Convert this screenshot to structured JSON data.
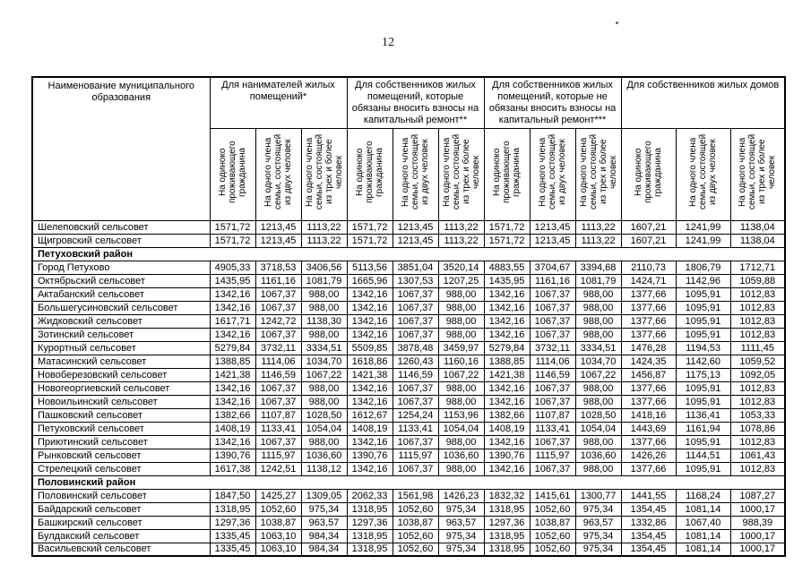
{
  "page": {
    "number": "12"
  },
  "table": {
    "name_header": "Наименование муниципального образования",
    "groups": [
      {
        "label": "Для нанимателей жилых помещений*"
      },
      {
        "label": "Для собственников жилых помещений, которые обязаны вносить взносы на капитальный ремонт**"
      },
      {
        "label": "Для собственников жилых помещений, которые не обязаны вносить взносы на капитальный ремонт***"
      },
      {
        "label": "Для собственников жилых домов"
      }
    ],
    "sub_headers": [
      "На одиноко проживающего гражданина",
      "На одного члена семьи, состоящей из двух человек",
      "На одного члена семьи, состоящей из трех и более человек"
    ],
    "rows": [
      {
        "type": "data",
        "name": "Шелеповский сельсовет",
        "values": [
          "1571,72",
          "1213,45",
          "1113,22",
          "1571,72",
          "1213,45",
          "1113,22",
          "1571,72",
          "1213,45",
          "1113,22",
          "1607,21",
          "1241,99",
          "1138,04"
        ]
      },
      {
        "type": "data",
        "name": "Щигровский сельсовет",
        "values": [
          "1571,72",
          "1213,45",
          "1113,22",
          "1571,72",
          "1213,45",
          "1113,22",
          "1571,72",
          "1213,45",
          "1113,22",
          "1607,21",
          "1241,99",
          "1138,04"
        ]
      },
      {
        "type": "section",
        "name": "Петуховский район"
      },
      {
        "type": "data",
        "name": "Город Петухово",
        "values": [
          "4905,33",
          "3718,53",
          "3406,56",
          "5113,56",
          "3851,04",
          "3520,14",
          "4883,55",
          "3704,67",
          "3394,68",
          "2110,73",
          "1806,79",
          "1712,71"
        ]
      },
      {
        "type": "data",
        "name": "Октябрьский сельсовет",
        "values": [
          "1435,95",
          "1161,16",
          "1081,79",
          "1665,96",
          "1307,53",
          "1207,25",
          "1435,95",
          "1161,16",
          "1081,79",
          "1424,71",
          "1142,96",
          "1059,88"
        ]
      },
      {
        "type": "data",
        "name": "Актабанский сельсовет",
        "values": [
          "1342,16",
          "1067,37",
          "988,00",
          "1342,16",
          "1067,37",
          "988,00",
          "1342,16",
          "1067,37",
          "988,00",
          "1377,66",
          "1095,91",
          "1012,83"
        ]
      },
      {
        "type": "data",
        "name": "Большегусиновский сельсовет",
        "values": [
          "1342,16",
          "1067,37",
          "988,00",
          "1342,16",
          "1067,37",
          "988,00",
          "1342,16",
          "1067,37",
          "988,00",
          "1377,66",
          "1095,91",
          "1012,83"
        ]
      },
      {
        "type": "data",
        "name": "Жидковский сельсовет",
        "values": [
          "1617,71",
          "1242,72",
          "1138,30",
          "1342,16",
          "1067,37",
          "988,00",
          "1342,16",
          "1067,37",
          "988,00",
          "1377,66",
          "1095,91",
          "1012,83"
        ]
      },
      {
        "type": "data",
        "name": "Зотинский сельсовет",
        "values": [
          "1342,16",
          "1067,37",
          "988,00",
          "1342,16",
          "1067,37",
          "988,00",
          "1342,16",
          "1067,37",
          "988,00",
          "1377,66",
          "1095,91",
          "1012,83"
        ]
      },
      {
        "type": "data",
        "name": "Курортный сельсовет",
        "values": [
          "5279,84",
          "3732,11",
          "3334,51",
          "5509,85",
          "3878,48",
          "3459,97",
          "5279,84",
          "3732,11",
          "3334,51",
          "1476,28",
          "1194,53",
          "1111,45"
        ]
      },
      {
        "type": "data",
        "name": "Матасинский сельсовет",
        "values": [
          "1388,85",
          "1114,06",
          "1034,70",
          "1618,86",
          "1260,43",
          "1160,16",
          "1388,85",
          "1114,06",
          "1034,70",
          "1424,35",
          "1142,60",
          "1059,52"
        ]
      },
      {
        "type": "data",
        "name": "Новоберезовский сельсовет",
        "values": [
          "1421,38",
          "1146,59",
          "1067,22",
          "1421,38",
          "1146,59",
          "1067,22",
          "1421,38",
          "1146,59",
          "1067,22",
          "1456,87",
          "1175,13",
          "1092,05"
        ]
      },
      {
        "type": "data",
        "name": "Новогеоргиевский сельсовет",
        "values": [
          "1342,16",
          "1067,37",
          "988,00",
          "1342,16",
          "1067,37",
          "988,00",
          "1342,16",
          "1067,37",
          "988,00",
          "1377,66",
          "1095,91",
          "1012,83"
        ]
      },
      {
        "type": "data",
        "name": "Новоильинский сельсовет",
        "values": [
          "1342,16",
          "1067,37",
          "988,00",
          "1342,16",
          "1067,37",
          "988,00",
          "1342,16",
          "1067,37",
          "988,00",
          "1377,66",
          "1095,91",
          "1012,83"
        ]
      },
      {
        "type": "data",
        "name": "Пашковский сельсовет",
        "values": [
          "1382,66",
          "1107,87",
          "1028,50",
          "1612,67",
          "1254,24",
          "1153,96",
          "1382,66",
          "1107,87",
          "1028,50",
          "1418,16",
          "1136,41",
          "1053,33"
        ]
      },
      {
        "type": "data",
        "name": "Петуховский сельсовет",
        "values": [
          "1408,19",
          "1133,41",
          "1054,04",
          "1408,19",
          "1133,41",
          "1054,04",
          "1408,19",
          "1133,41",
          "1054,04",
          "1443,69",
          "1161,94",
          "1078,86"
        ]
      },
      {
        "type": "data",
        "name": "Приютинский сельсовет",
        "values": [
          "1342,16",
          "1067,37",
          "988,00",
          "1342,16",
          "1067,37",
          "988,00",
          "1342,16",
          "1067,37",
          "988,00",
          "1377,66",
          "1095,91",
          "1012,83"
        ]
      },
      {
        "type": "data",
        "name": "Рынковский сельсовет",
        "values": [
          "1390,76",
          "1115,97",
          "1036,60",
          "1390,76",
          "1115,97",
          "1036,60",
          "1390,76",
          "1115,97",
          "1036,60",
          "1426,26",
          "1144,51",
          "1061,43"
        ]
      },
      {
        "type": "data",
        "name": "Стрелецкий сельсовет",
        "values": [
          "1617,38",
          "1242,51",
          "1138,12",
          "1342,16",
          "1067,37",
          "988,00",
          "1342,16",
          "1067,37",
          "988,00",
          "1377,66",
          "1095,91",
          "1012,83"
        ]
      },
      {
        "type": "section",
        "name": "Половинский район"
      },
      {
        "type": "data",
        "name": "Половинский сельсовет",
        "values": [
          "1847,50",
          "1425,27",
          "1309,05",
          "2062,33",
          "1561,98",
          "1426,23",
          "1832,32",
          "1415,61",
          "1300,77",
          "1441,55",
          "1168,24",
          "1087,27"
        ]
      },
      {
        "type": "data",
        "name": "Байдарский сельсовет",
        "values": [
          "1318,95",
          "1052,60",
          "975,34",
          "1318,95",
          "1052,60",
          "975,34",
          "1318,95",
          "1052,60",
          "975,34",
          "1354,45",
          "1081,14",
          "1000,17"
        ]
      },
      {
        "type": "data",
        "name": "Башкирский сельсовет",
        "values": [
          "1297,36",
          "1038,87",
          "963,57",
          "1297,36",
          "1038,87",
          "963,57",
          "1297,36",
          "1038,87",
          "963,57",
          "1332,86",
          "1067,40",
          "988,39"
        ]
      },
      {
        "type": "data",
        "name": "Булдакский сельсовет",
        "values": [
          "1335,45",
          "1063,10",
          "984,34",
          "1318,95",
          "1052,60",
          "975,34",
          "1318,95",
          "1052,60",
          "975,34",
          "1354,45",
          "1081,14",
          "1000,17"
        ]
      },
      {
        "type": "data",
        "name": "Васильевский сельсовет",
        "values": [
          "1335,45",
          "1063,10",
          "984,34",
          "1318,95",
          "1052,60",
          "975,34",
          "1318,95",
          "1052,60",
          "975,34",
          "1354,45",
          "1081,14",
          "1000,17"
        ]
      }
    ]
  }
}
